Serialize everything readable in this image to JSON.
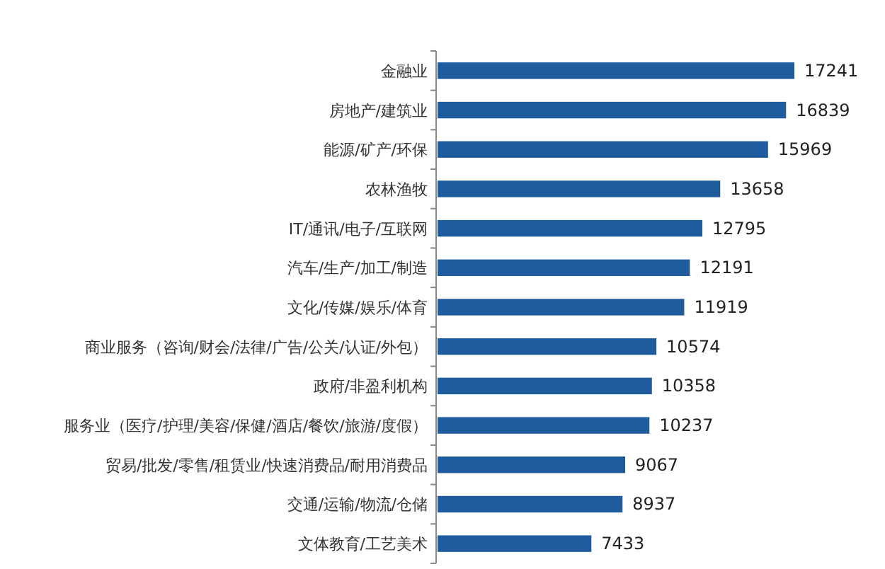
{
  "chart_data": {
    "type": "bar",
    "orientation": "horizontal",
    "data_labels": true,
    "color": "#1f5c9e",
    "categories": [
      "金融业",
      "房地产/建筑业",
      "能源/矿产/环保",
      "农林渔牧",
      "IT/通讯/电子/互联网",
      "汽车/生产/加工/制造",
      "文化/传媒/娱乐/体育",
      "商业服务（咨询/财会/法律/广告/公关/认证/外包）",
      "政府/非盈利机构",
      "服务业（医疗/护理/美容/保健/酒店/餐饮/旅游/度假）",
      "贸易/批发/零售/租赁业/快速消费品/耐用消费品",
      "交通/运输/物流/仓储",
      "文体教育/工艺美术"
    ],
    "values": [
      17241,
      16839,
      15969,
      13658,
      12795,
      12191,
      11919,
      10574,
      10358,
      10237,
      9067,
      8937,
      7433
    ]
  }
}
